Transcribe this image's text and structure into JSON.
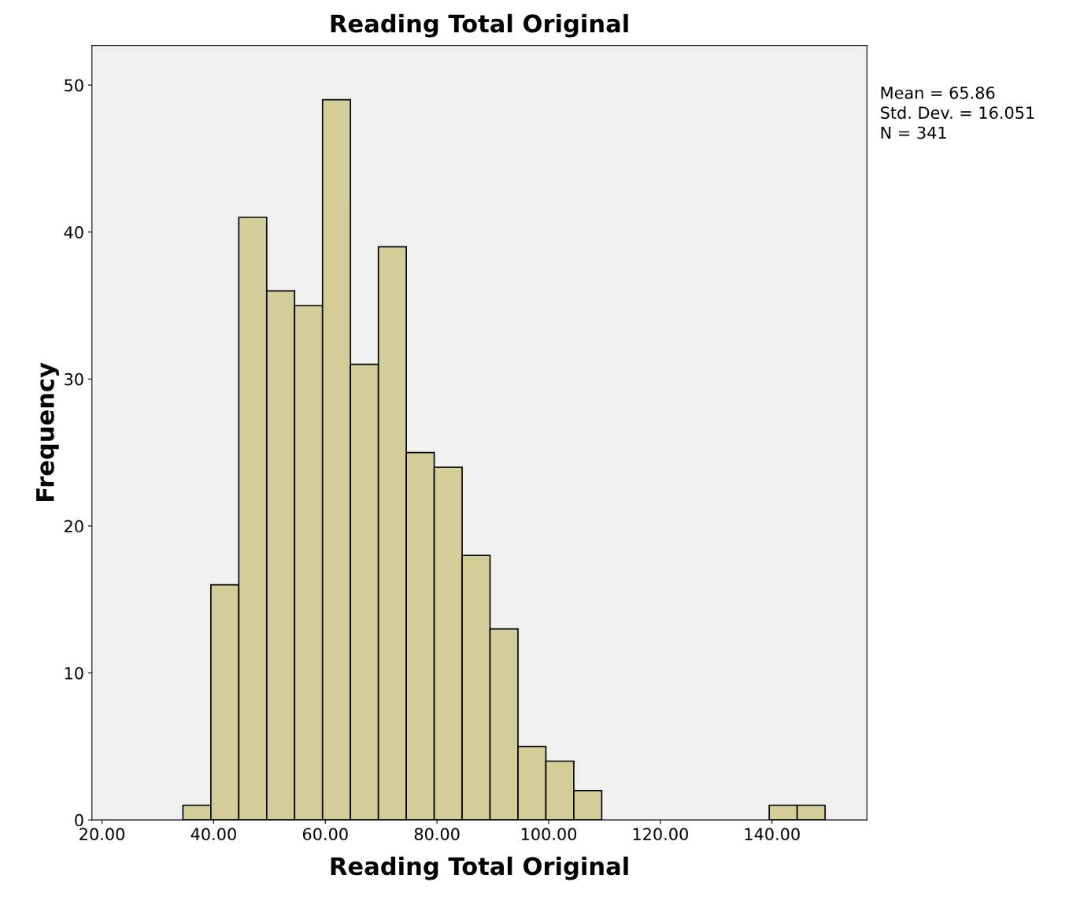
{
  "chart_data": {
    "type": "histogram",
    "title": "Reading Total Original",
    "xlabel": "Reading Total Original",
    "ylabel": "Frequency",
    "bins": [
      34.5,
      39.5,
      44.5,
      49.5,
      54.5,
      59.5,
      64.5,
      69.5,
      74.5,
      79.5,
      84.5,
      89.5,
      94.5,
      99.5,
      104.5,
      109.5,
      114.5,
      119.5,
      124.5,
      129.5,
      134.5,
      139.5,
      144.5,
      149.5
    ],
    "values": [
      1,
      16,
      41,
      36,
      35,
      49,
      31,
      39,
      25,
      24,
      18,
      13,
      5,
      4,
      2,
      0,
      0,
      0,
      0,
      0,
      0,
      1,
      1
    ],
    "color": "#d3ce97",
    "xlim": [
      18.2,
      157
    ],
    "ylim": [
      0,
      52.7
    ],
    "xticks": [
      {
        "value": 20,
        "label": "20.00"
      },
      {
        "value": 40,
        "label": "40.00"
      },
      {
        "value": 60,
        "label": "60.00"
      },
      {
        "value": 80,
        "label": "80.00"
      },
      {
        "value": 100,
        "label": "100.00"
      },
      {
        "value": 120,
        "label": "120.00"
      },
      {
        "value": 140,
        "label": "140.00"
      }
    ],
    "yticks": [
      0,
      10,
      20,
      30,
      40,
      50
    ],
    "grid": false,
    "legend": false,
    "annotations": [
      "Mean = 65.86",
      "Std. Dev. = 16.051",
      "N = 341"
    ]
  }
}
